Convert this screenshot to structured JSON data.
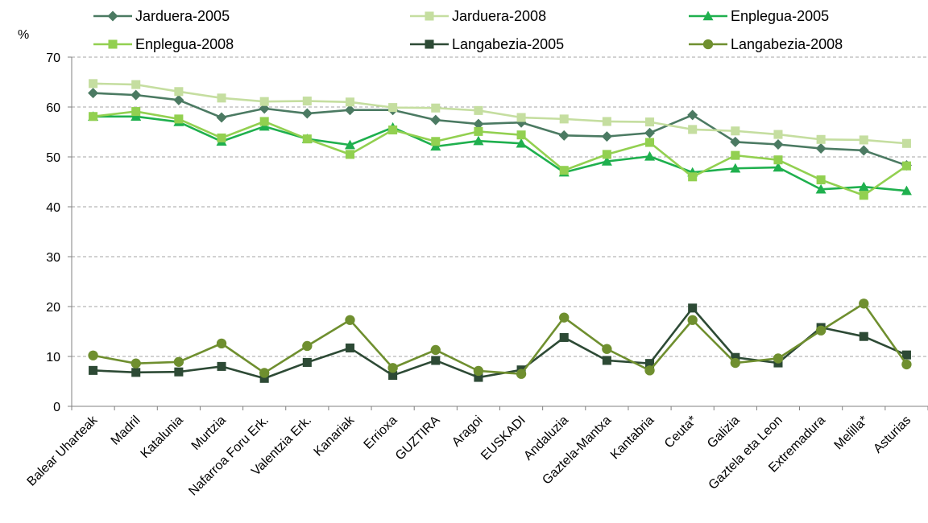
{
  "chart_data": {
    "type": "line",
    "title": "",
    "xlabel": "",
    "ylabel": "%",
    "ylim": [
      0,
      70
    ],
    "yticks": [
      0,
      10,
      20,
      30,
      40,
      50,
      60,
      70
    ],
    "grid": true,
    "legend_position": "top",
    "categories": [
      "Balear Uharteak",
      "Madril",
      "Katalunia",
      "Murtzia",
      "Nafarroa Foru Erk.",
      "Valentzia Erk.",
      "Kanariak",
      "Errioxa",
      "GUZTIRA",
      "Aragoi",
      "EUSKADI",
      "Andaluzia",
      "Gaztela-Mantxa",
      "Kantabria",
      "Ceuta*",
      "Galizia",
      "Gaztela eta Leon",
      "Extremadura",
      "Melilla*",
      "Asturias"
    ],
    "series": [
      {
        "name": "Jarduera-2005",
        "color": "#4b7a62",
        "marker": "diamond",
        "values": [
          62.8,
          62.4,
          61.4,
          57.9,
          59.7,
          58.7,
          59.4,
          59.4,
          57.4,
          56.6,
          56.9,
          54.3,
          54.1,
          54.8,
          58.4,
          53.0,
          52.5,
          51.7,
          51.3,
          48.3
        ]
      },
      {
        "name": "Jarduera-2008",
        "color": "#c5dea0",
        "marker": "square",
        "values": [
          64.7,
          64.5,
          63.1,
          61.8,
          61.1,
          61.2,
          61.0,
          59.9,
          59.8,
          59.3,
          57.9,
          57.6,
          57.1,
          57.0,
          55.5,
          55.2,
          54.5,
          53.5,
          53.4,
          52.7
        ]
      },
      {
        "name": "Enplegua-2005",
        "color": "#1fb04e",
        "marker": "triangle",
        "values": [
          58.1,
          58.1,
          57.0,
          53.1,
          56.1,
          53.6,
          52.4,
          55.9,
          52.1,
          53.2,
          52.7,
          46.9,
          49.1,
          50.1,
          46.9,
          47.7,
          47.9,
          43.5,
          44.0,
          43.2
        ]
      },
      {
        "name": "Enplegua-2008",
        "color": "#92d050",
        "marker": "square",
        "values": [
          58.1,
          59.1,
          57.6,
          53.8,
          57.1,
          53.6,
          50.5,
          55.4,
          53.1,
          55.1,
          54.4,
          47.3,
          50.5,
          52.9,
          46.0,
          50.3,
          49.4,
          45.4,
          42.3,
          48.2
        ]
      },
      {
        "name": "Langabezia-2005",
        "color": "#2d4a35",
        "marker": "square",
        "values": [
          7.2,
          6.8,
          6.9,
          8.0,
          5.6,
          8.8,
          11.7,
          6.2,
          9.2,
          5.8,
          7.3,
          13.8,
          9.2,
          8.6,
          19.7,
          9.8,
          8.7,
          15.8,
          14.0,
          10.3
        ]
      },
      {
        "name": "Langabezia-2008",
        "color": "#6f8f2f",
        "marker": "circle",
        "values": [
          10.2,
          8.6,
          8.9,
          12.6,
          6.7,
          12.1,
          17.3,
          7.7,
          11.3,
          7.1,
          6.5,
          17.8,
          11.5,
          7.2,
          17.3,
          8.7,
          9.6,
          15.2,
          20.6,
          8.4
        ]
      }
    ]
  }
}
